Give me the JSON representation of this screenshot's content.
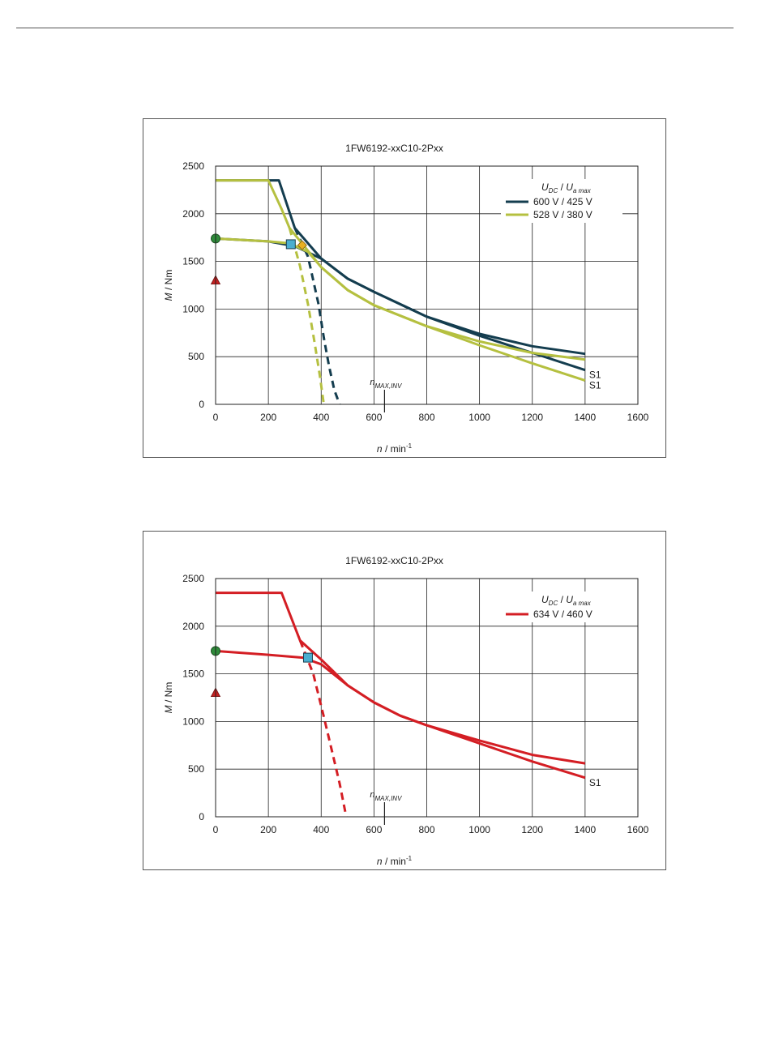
{
  "chart_data": [
    {
      "type": "line",
      "title": "1FW6192-xxC10-2Pxx",
      "xlabel_var": "n",
      "xlabel_unit": " / min",
      "xlabel_exp": "-1",
      "ylabel_var": "M",
      "ylabel_unit": " / Nm",
      "xlim": [
        0,
        1600
      ],
      "ylim": [
        0,
        2500
      ],
      "xticks": [
        "0",
        "200",
        "400",
        "600",
        "800",
        "1000",
        "1200",
        "1400",
        "1600"
      ],
      "yticks": [
        "0",
        "500",
        "1000",
        "1500",
        "2000",
        "2500"
      ],
      "grid": true,
      "legend_placement": "top-right",
      "legend_header": {
        "u1": "U",
        "u1_sub": "DC",
        "sep": "  /  ",
        "u2": "U",
        "u2_sub": "a max"
      },
      "nmax_label": {
        "var": "n",
        "sub": "MAX,INV",
        "x": 640
      },
      "series": [
        {
          "name": "600 V / 425 V",
          "color": "#143d4f",
          "peak": [
            [
              0,
              2350
            ],
            [
              240,
              2350
            ],
            [
              300,
              1850
            ],
            [
              400,
              1530
            ],
            [
              500,
              1320
            ],
            [
              600,
              1180
            ],
            [
              800,
              920
            ],
            [
              1000,
              740
            ],
            [
              1200,
              610
            ],
            [
              1400,
              530
            ]
          ],
          "s1": [
            [
              0,
              1740
            ],
            [
              200,
              1710
            ],
            [
              300,
              1660
            ],
            [
              400,
              1530
            ],
            [
              500,
              1320
            ],
            [
              600,
              1180
            ],
            [
              800,
              920
            ],
            [
              1000,
              720
            ],
            [
              1200,
              540
            ],
            [
              1400,
              360
            ]
          ],
          "dashed": [
            [
              300,
              1850
            ],
            [
              350,
              1550
            ],
            [
              390,
              1050
            ],
            [
              410,
              700
            ],
            [
              430,
              400
            ],
            [
              450,
              150
            ],
            [
              470,
              0
            ]
          ],
          "s1_label": "S1"
        },
        {
          "name": "528 V / 380 V",
          "color": "#b5c040",
          "peak": [
            [
              0,
              2350
            ],
            [
              200,
              2350
            ],
            [
              250,
              2050
            ],
            [
              280,
              1850
            ],
            [
              400,
              1440
            ],
            [
              500,
              1200
            ],
            [
              600,
              1040
            ],
            [
              800,
              820
            ],
            [
              1000,
              660
            ],
            [
              1200,
              540
            ],
            [
              1400,
              470
            ]
          ],
          "s1": [
            [
              0,
              1740
            ],
            [
              200,
              1710
            ],
            [
              280,
              1690
            ],
            [
              350,
              1600
            ],
            [
              400,
              1440
            ],
            [
              500,
              1200
            ],
            [
              600,
              1040
            ],
            [
              800,
              820
            ],
            [
              1000,
              620
            ],
            [
              1200,
              430
            ],
            [
              1400,
              250
            ]
          ],
          "dashed": [
            [
              280,
              1850
            ],
            [
              320,
              1450
            ],
            [
              350,
              1050
            ],
            [
              375,
              650
            ],
            [
              395,
              300
            ],
            [
              410,
              0
            ]
          ],
          "s1_label": "S1"
        }
      ],
      "markers": [
        {
          "shape": "circle",
          "x": 0,
          "y": 1740,
          "color": "#2e8b3a"
        },
        {
          "shape": "triangle",
          "x": 0,
          "y": 1300,
          "color": "#c42020"
        },
        {
          "shape": "square",
          "x": 285,
          "y": 1680,
          "color": "#4aaed0"
        },
        {
          "shape": "diamond",
          "x": 328,
          "y": 1670,
          "color": "#e8b020"
        }
      ]
    },
    {
      "type": "line",
      "title": "1FW6192-xxC10-2Pxx",
      "xlabel_var": "n",
      "xlabel_unit": " / min",
      "xlabel_exp": "-1",
      "ylabel_var": "M",
      "ylabel_unit": " / Nm",
      "xlim": [
        0,
        1600
      ],
      "ylim": [
        0,
        2500
      ],
      "xticks": [
        "0",
        "200",
        "400",
        "600",
        "800",
        "1000",
        "1200",
        "1400",
        "1600"
      ],
      "yticks": [
        "0",
        "500",
        "1000",
        "1500",
        "2000",
        "2500"
      ],
      "grid": true,
      "legend_placement": "top-right",
      "legend_header": {
        "u1": "U",
        "u1_sub": "DC",
        "sep": "  /  ",
        "u2": "U",
        "u2_sub": "a max"
      },
      "nmax_label": {
        "var": "n",
        "sub": "MAX,INV",
        "x": 640
      },
      "series": [
        {
          "name": "634 V / 460 V",
          "color": "#d41e24",
          "peak": [
            [
              0,
              2350
            ],
            [
              250,
              2350
            ],
            [
              320,
              1850
            ],
            [
              400,
              1650
            ],
            [
              500,
              1380
            ],
            [
              600,
              1200
            ],
            [
              700,
              1060
            ],
            [
              800,
              960
            ],
            [
              1000,
              800
            ],
            [
              1200,
              650
            ],
            [
              1400,
              560
            ]
          ],
          "s1": [
            [
              0,
              1740
            ],
            [
              200,
              1700
            ],
            [
              330,
              1670
            ],
            [
              400,
              1600
            ],
            [
              500,
              1380
            ],
            [
              600,
              1200
            ],
            [
              700,
              1060
            ],
            [
              800,
              960
            ],
            [
              1000,
              770
            ],
            [
              1200,
              580
            ],
            [
              1400,
              410
            ]
          ],
          "dashed": [
            [
              320,
              1850
            ],
            [
              370,
              1500
            ],
            [
              410,
              1050
            ],
            [
              440,
              700
            ],
            [
              470,
              350
            ],
            [
              495,
              0
            ]
          ],
          "s1_label": "S1"
        }
      ],
      "markers": [
        {
          "shape": "circle",
          "x": 0,
          "y": 1740,
          "color": "#2e8b3a"
        },
        {
          "shape": "triangle",
          "x": 0,
          "y": 1300,
          "color": "#c42020"
        },
        {
          "shape": "square",
          "x": 350,
          "y": 1670,
          "color": "#4aaed0"
        }
      ]
    }
  ]
}
